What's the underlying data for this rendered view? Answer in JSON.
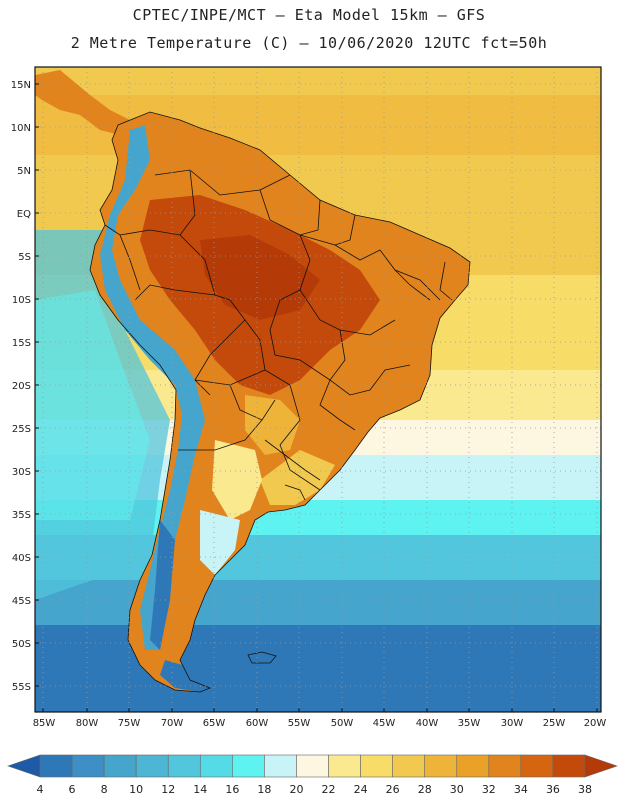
{
  "header": {
    "line1": "CPTEC/INPE/MCT –  Eta Model 15km – GFS",
    "line2": "2 Metre Temperature (C) – 10/06/2020 12UTC fct=50h"
  },
  "map": {
    "lat_range": [
      -58,
      17
    ],
    "lon_range": [
      -86,
      -20
    ],
    "lat_ticks": [
      "15N",
      "10N",
      "5N",
      "EQ",
      "5S",
      "10S",
      "15S",
      "20S",
      "25S",
      "30S",
      "35S",
      "40S",
      "45S",
      "50S",
      "55S"
    ],
    "lat_values": [
      15,
      10,
      5,
      0,
      -5,
      -10,
      -15,
      -20,
      -25,
      -30,
      -35,
      -40,
      -45,
      -50,
      -55
    ],
    "lon_ticks": [
      "85W",
      "80W",
      "75W",
      "70W",
      "65W",
      "60W",
      "55W",
      "50W",
      "45W",
      "40W",
      "35W",
      "30W",
      "25W",
      "20W"
    ],
    "lon_values": [
      -85,
      -80,
      -75,
      -70,
      -65,
      -60,
      -55,
      -50,
      -45,
      -40,
      -35,
      -30,
      -25,
      -20
    ],
    "gridlines": "dotted"
  },
  "colorbar": {
    "labels": [
      "4",
      "6",
      "8",
      "10",
      "12",
      "14",
      "16",
      "18",
      "20",
      "22",
      "24",
      "26",
      "28",
      "30",
      "32",
      "34",
      "36",
      "38"
    ],
    "colors": [
      "#1f5aa6",
      "#2f78b8",
      "#3d8fc5",
      "#46a5cc",
      "#4db6d4",
      "#52c6dc",
      "#55dbe6",
      "#5ef2f0",
      "#c8f3f7",
      "#fdf6e0",
      "#fbe98f",
      "#f7dc68",
      "#f2c94f",
      "#eeb43a",
      "#eaa128",
      "#e2841d",
      "#d66512",
      "#c44a0c",
      "#b43a08"
    ]
  },
  "colors": {
    "ocean_warm": "#f2c94f",
    "ocean_mild": "#fbe98f",
    "ocean_cool": "#52c6dc",
    "ocean_cold": "#2f78b8",
    "land_hot": "#c44a0c",
    "land_warm": "#e2841d",
    "andes_cold": "#3d8fc5",
    "border": "#111111"
  }
}
